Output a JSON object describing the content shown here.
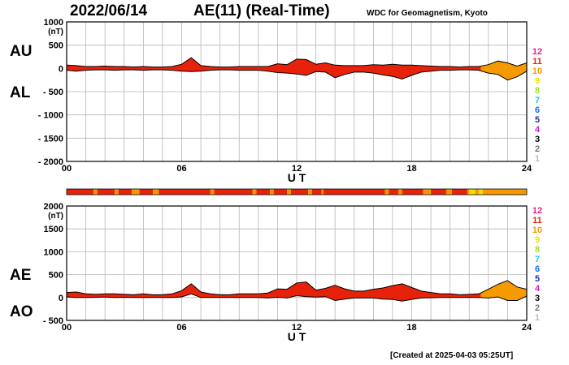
{
  "header": {
    "date": "2022/06/14",
    "title": "AE(11) (Real-Time)",
    "credit": "WDC for Geomagnetism, Kyoto"
  },
  "footer": {
    "created": "[Created at 2025-04-03 05:25UT]"
  },
  "legend": {
    "levels": [
      {
        "label": "12",
        "color": "#e8228c"
      },
      {
        "label": "11",
        "color": "#e8220a"
      },
      {
        "label": "10",
        "color": "#f59a00"
      },
      {
        "label": "9",
        "color": "#f2e000"
      },
      {
        "label": "8",
        "color": "#9ee02a"
      },
      {
        "label": "7",
        "color": "#20c8e8"
      },
      {
        "label": "6",
        "color": "#1870e0"
      },
      {
        "label": "5",
        "color": "#2b2bb0"
      },
      {
        "label": "4",
        "color": "#cc22cc"
      },
      {
        "label": "3",
        "color": "#000000"
      },
      {
        "label": "2",
        "color": "#777777"
      },
      {
        "label": "1",
        "color": "#bbbbbb"
      }
    ]
  },
  "chart_data": [
    {
      "type": "area",
      "series": [
        {
          "name": "AU",
          "x": [
            0,
            0.5,
            1,
            1.5,
            2,
            2.5,
            3,
            3.5,
            4,
            4.5,
            5,
            5.5,
            6,
            6.5,
            7,
            7.5,
            8,
            8.5,
            9,
            9.5,
            10,
            10.5,
            11,
            11.5,
            12,
            12.5,
            13,
            13.5,
            14,
            14.5,
            15,
            15.5,
            16,
            16.5,
            17,
            17.5,
            18,
            18.5,
            19,
            19.5,
            20,
            20.5,
            21,
            21.5,
            22,
            22.5,
            23,
            23.5,
            24
          ],
          "values": [
            70,
            60,
            40,
            40,
            50,
            40,
            40,
            30,
            40,
            30,
            30,
            40,
            90,
            230,
            60,
            40,
            30,
            30,
            40,
            40,
            40,
            40,
            100,
            80,
            200,
            190,
            90,
            120,
            70,
            60,
            60,
            60,
            80,
            70,
            90,
            70,
            70,
            60,
            50,
            40,
            40,
            30,
            40,
            40,
            80,
            160,
            120,
            50,
            120
          ]
        },
        {
          "name": "AL",
          "x": [
            0,
            0.5,
            1,
            1.5,
            2,
            2.5,
            3,
            3.5,
            4,
            4.5,
            5,
            5.5,
            6,
            6.5,
            7,
            7.5,
            8,
            8.5,
            9,
            9.5,
            10,
            10.5,
            11,
            11.5,
            12,
            12.5,
            13,
            13.5,
            14,
            14.5,
            15,
            15.5,
            16,
            16.5,
            17,
            17.5,
            18,
            18.5,
            19,
            19.5,
            20,
            20.5,
            21,
            21.5,
            22,
            22.5,
            23,
            23.5,
            24
          ],
          "values": [
            -40,
            -60,
            -40,
            -30,
            -30,
            -40,
            -30,
            -30,
            -40,
            -30,
            -30,
            -40,
            -60,
            -70,
            -60,
            -40,
            -30,
            -30,
            -40,
            -40,
            -40,
            -60,
            -90,
            -100,
            -120,
            -150,
            -70,
            -80,
            -200,
            -130,
            -80,
            -80,
            -100,
            -140,
            -170,
            -230,
            -150,
            -80,
            -60,
            -40,
            -40,
            -30,
            -30,
            -40,
            -100,
            -130,
            -250,
            -180,
            -60
          ]
        }
      ],
      "ylim": [
        -2000,
        1000
      ],
      "yticks": [
        "1000",
        "500",
        "0",
        "- 500",
        "- 1000",
        "- 1500",
        "- 2000"
      ],
      "ytick_values": [
        1000,
        500,
        0,
        -500,
        -1000,
        -1500,
        -2000
      ],
      "yunit": "(nT)",
      "xticks": [
        "00",
        "06",
        "12",
        "18",
        "24"
      ],
      "xtick_values": [
        0,
        6,
        12,
        18,
        24
      ],
      "xlabel": "U T",
      "upper_label": "AU",
      "lower_label": "AL",
      "grid": true
    },
    {
      "type": "area",
      "series": [
        {
          "name": "AE",
          "x": [
            0,
            0.5,
            1,
            1.5,
            2,
            2.5,
            3,
            3.5,
            4,
            4.5,
            5,
            5.5,
            6,
            6.5,
            7,
            7.5,
            8,
            8.5,
            9,
            9.5,
            10,
            10.5,
            11,
            11.5,
            12,
            12.5,
            13,
            13.5,
            14,
            14.5,
            15,
            15.5,
            16,
            16.5,
            17,
            17.5,
            18,
            18.5,
            19,
            19.5,
            20,
            20.5,
            21,
            21.5,
            22,
            22.5,
            23,
            23.5,
            24
          ],
          "values": [
            110,
            120,
            80,
            70,
            80,
            80,
            70,
            60,
            80,
            60,
            60,
            80,
            150,
            300,
            120,
            80,
            60,
            60,
            80,
            80,
            80,
            100,
            190,
            180,
            320,
            340,
            160,
            200,
            270,
            190,
            140,
            140,
            180,
            210,
            260,
            300,
            220,
            140,
            110,
            80,
            80,
            60,
            70,
            80,
            180,
            290,
            370,
            230,
            180
          ]
        },
        {
          "name": "AO",
          "x": [
            0,
            0.5,
            1,
            1.5,
            2,
            2.5,
            3,
            3.5,
            4,
            4.5,
            5,
            5.5,
            6,
            6.5,
            7,
            7.5,
            8,
            8.5,
            9,
            9.5,
            10,
            10.5,
            11,
            11.5,
            12,
            12.5,
            13,
            13.5,
            14,
            14.5,
            15,
            15.5,
            16,
            16.5,
            17,
            17.5,
            18,
            18.5,
            19,
            19.5,
            20,
            20.5,
            21,
            21.5,
            22,
            22.5,
            23,
            23.5,
            24
          ],
          "values": [
            15,
            0,
            0,
            5,
            10,
            0,
            5,
            0,
            0,
            0,
            0,
            0,
            15,
            80,
            0,
            0,
            0,
            0,
            0,
            0,
            0,
            -10,
            5,
            -10,
            40,
            20,
            10,
            20,
            -65,
            -35,
            -10,
            -10,
            -10,
            -35,
            -40,
            -80,
            -40,
            -10,
            -5,
            0,
            0,
            0,
            5,
            0,
            -10,
            15,
            -65,
            -65,
            30
          ]
        }
      ],
      "ylim": [
        -500,
        2000
      ],
      "yticks": [
        "2000",
        "1500",
        "1000",
        "500",
        "0",
        "- 500"
      ],
      "ytick_values": [
        2000,
        1500,
        1000,
        500,
        0,
        -500
      ],
      "yunit": "(nT)",
      "xticks": [
        "00",
        "06",
        "12",
        "18",
        "24"
      ],
      "xtick_values": [
        0,
        6,
        12,
        18,
        24
      ],
      "xlabel": "U T",
      "upper_label": "AE",
      "lower_label": "AO",
      "grid": true
    }
  ],
  "station_bar": {
    "segments": [
      {
        "from": 0,
        "to": 1.4,
        "level": "11"
      },
      {
        "from": 1.4,
        "to": 1.6,
        "level": "10"
      },
      {
        "from": 1.6,
        "to": 2.5,
        "level": "11"
      },
      {
        "from": 2.5,
        "to": 2.7,
        "level": "10"
      },
      {
        "from": 2.7,
        "to": 3.4,
        "level": "11"
      },
      {
        "from": 3.4,
        "to": 3.8,
        "level": "10"
      },
      {
        "from": 3.8,
        "to": 4.5,
        "level": "11"
      },
      {
        "from": 4.5,
        "to": 4.8,
        "level": "10"
      },
      {
        "from": 4.8,
        "to": 7.5,
        "level": "11"
      },
      {
        "from": 7.5,
        "to": 7.7,
        "level": "10"
      },
      {
        "from": 7.7,
        "to": 9.7,
        "level": "11"
      },
      {
        "from": 9.7,
        "to": 9.9,
        "level": "10"
      },
      {
        "from": 9.9,
        "to": 10.6,
        "level": "11"
      },
      {
        "from": 10.6,
        "to": 10.8,
        "level": "10"
      },
      {
        "from": 10.8,
        "to": 11.5,
        "level": "11"
      },
      {
        "from": 11.5,
        "to": 11.7,
        "level": "10"
      },
      {
        "from": 11.7,
        "to": 12.6,
        "level": "11"
      },
      {
        "from": 12.6,
        "to": 12.8,
        "level": "10"
      },
      {
        "from": 12.8,
        "to": 13.3,
        "level": "11"
      },
      {
        "from": 13.3,
        "to": 13.4,
        "level": "10"
      },
      {
        "from": 13.4,
        "to": 16.6,
        "level": "11"
      },
      {
        "from": 16.6,
        "to": 16.8,
        "level": "10"
      },
      {
        "from": 16.8,
        "to": 17.3,
        "level": "11"
      },
      {
        "from": 17.3,
        "to": 17.5,
        "level": "10"
      },
      {
        "from": 17.5,
        "to": 18.6,
        "level": "11"
      },
      {
        "from": 18.6,
        "to": 19.0,
        "level": "10"
      },
      {
        "from": 19.0,
        "to": 19.8,
        "level": "11"
      },
      {
        "from": 19.8,
        "to": 20.1,
        "level": "10"
      },
      {
        "from": 20.1,
        "to": 20.9,
        "level": "11"
      },
      {
        "from": 20.9,
        "to": 21.0,
        "level": "10"
      },
      {
        "from": 21.0,
        "to": 21.3,
        "level": "9"
      },
      {
        "from": 21.3,
        "to": 21.5,
        "level": "10"
      },
      {
        "from": 21.5,
        "to": 21.7,
        "level": "9"
      },
      {
        "from": 21.7,
        "to": 24,
        "level": "10"
      }
    ]
  }
}
